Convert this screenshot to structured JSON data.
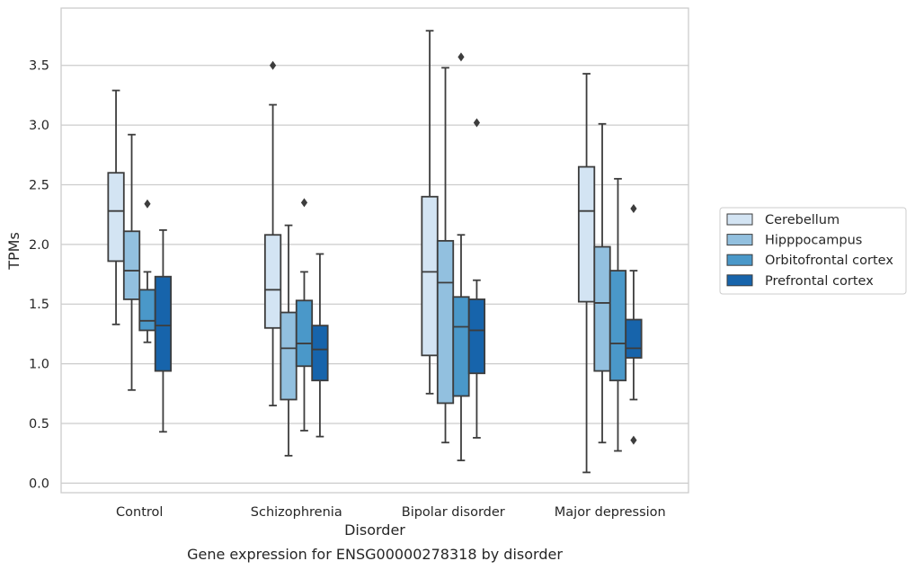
{
  "chart_data": {
    "type": "boxplot",
    "caption": "Gene expression for ENSG00000278318 by disorder",
    "xlabel": "Disorder",
    "ylabel": "TPMs",
    "ylim": [
      -0.08,
      3.98
    ],
    "yticks": [
      0.0,
      0.5,
      1.0,
      1.5,
      2.0,
      2.5,
      3.0,
      3.5
    ],
    "ytick_labels": [
      "0.0",
      "0.5",
      "1.0",
      "1.5",
      "2.0",
      "2.5",
      "3.0",
      "3.5"
    ],
    "grid": "horizontal",
    "legend_position": "outside-right",
    "categories": [
      "Control",
      "Schizophrenia",
      "Bipolar disorder",
      "Major depression"
    ],
    "series": [
      {
        "name": "Cerebellum",
        "color": "#d3e4f3",
        "boxes": [
          {
            "whisker_low": 1.33,
            "q1": 1.86,
            "median": 2.28,
            "q3": 2.6,
            "whisker_high": 3.29,
            "outliers": []
          },
          {
            "whisker_low": 0.65,
            "q1": 1.3,
            "median": 1.62,
            "q3": 2.08,
            "whisker_high": 3.17,
            "outliers": [
              3.5
            ]
          },
          {
            "whisker_low": 0.75,
            "q1": 1.07,
            "median": 1.77,
            "q3": 2.4,
            "whisker_high": 3.79,
            "outliers": []
          },
          {
            "whisker_low": 0.09,
            "q1": 1.52,
            "median": 2.28,
            "q3": 2.65,
            "whisker_high": 3.43,
            "outliers": []
          }
        ]
      },
      {
        "name": "Hipppocampus",
        "color": "#92c0df",
        "boxes": [
          {
            "whisker_low": 0.78,
            "q1": 1.54,
            "median": 1.78,
            "q3": 2.11,
            "whisker_high": 2.92,
            "outliers": []
          },
          {
            "whisker_low": 0.23,
            "q1": 0.7,
            "median": 1.13,
            "q3": 1.43,
            "whisker_high": 2.16,
            "outliers": []
          },
          {
            "whisker_low": 0.34,
            "q1": 0.67,
            "median": 1.68,
            "q3": 2.03,
            "whisker_high": 3.48,
            "outliers": []
          },
          {
            "whisker_low": 0.34,
            "q1": 0.94,
            "median": 1.51,
            "q3": 1.98,
            "whisker_high": 3.01,
            "outliers": []
          }
        ]
      },
      {
        "name": "Orbitofrontal cortex",
        "color": "#4a98c9",
        "boxes": [
          {
            "whisker_low": 1.18,
            "q1": 1.28,
            "median": 1.36,
            "q3": 1.62,
            "whisker_high": 1.77,
            "outliers": [
              2.34
            ]
          },
          {
            "whisker_low": 0.44,
            "q1": 0.98,
            "median": 1.17,
            "q3": 1.53,
            "whisker_high": 1.77,
            "outliers": [
              2.35
            ]
          },
          {
            "whisker_low": 0.19,
            "q1": 0.73,
            "median": 1.31,
            "q3": 1.56,
            "whisker_high": 2.08,
            "outliers": [
              3.57
            ]
          },
          {
            "whisker_low": 0.27,
            "q1": 0.86,
            "median": 1.17,
            "q3": 1.78,
            "whisker_high": 2.55,
            "outliers": []
          }
        ]
      },
      {
        "name": "Prefrontal cortex",
        "color": "#1764ab",
        "boxes": [
          {
            "whisker_low": 0.43,
            "q1": 0.94,
            "median": 1.32,
            "q3": 1.73,
            "whisker_high": 2.12,
            "outliers": []
          },
          {
            "whisker_low": 0.39,
            "q1": 0.86,
            "median": 1.12,
            "q3": 1.32,
            "whisker_high": 1.92,
            "outliers": []
          },
          {
            "whisker_low": 0.38,
            "q1": 0.92,
            "median": 1.28,
            "q3": 1.54,
            "whisker_high": 1.7,
            "outliers": [
              3.02
            ]
          },
          {
            "whisker_low": 0.7,
            "q1": 1.05,
            "median": 1.13,
            "q3": 1.37,
            "whisker_high": 1.78,
            "outliers": [
              0.36,
              2.3
            ]
          }
        ]
      }
    ]
  }
}
